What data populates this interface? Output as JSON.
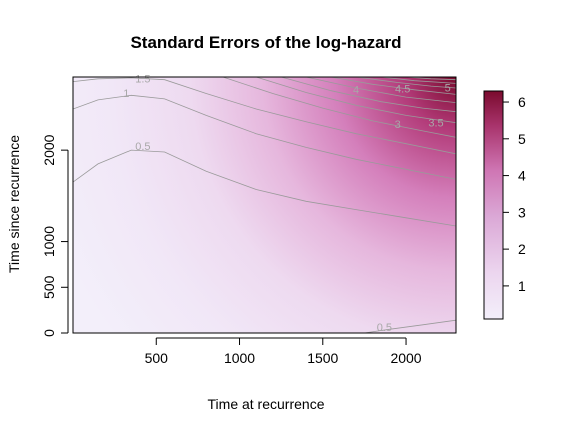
{
  "chart_data": {
    "type": "heatmap",
    "title": "Standard Errors of the log-hazard",
    "xlabel": "Time at recurrence",
    "ylabel": "Time since recurrence",
    "xlim": [
      0,
      2300
    ],
    "ylim": [
      0,
      2800
    ],
    "x_ticks": [
      500,
      1000,
      1500,
      2000
    ],
    "x_tick_labels": [
      "500",
      "1000",
      "1500",
      "2000"
    ],
    "y_ticks": [
      0,
      500,
      1000,
      2000
    ],
    "y_tick_labels": [
      "0",
      "500",
      "1000",
      "2000"
    ],
    "colorbar": {
      "range": [
        0.1,
        6.3
      ],
      "ticks": [
        1,
        2,
        3,
        4,
        5,
        6
      ],
      "tick_labels": [
        "1",
        "2",
        "3",
        "4",
        "5",
        "6"
      ],
      "low_color": "#f3effa",
      "mid_color": "#d99ccc",
      "high_color": "#7a0b2e"
    },
    "contour_levels": [
      {
        "level": 0.5,
        "label": "0.5",
        "points": [
          [
            0,
            1650
          ],
          [
            150,
            1850
          ],
          [
            350,
            2000
          ],
          [
            550,
            1980
          ],
          [
            800,
            1770
          ],
          [
            1100,
            1570
          ],
          [
            1400,
            1440
          ],
          [
            1700,
            1350
          ],
          [
            2000,
            1260
          ],
          [
            2300,
            1170
          ]
        ]
      },
      {
        "level": 1,
        "label": "1",
        "points": [
          [
            0,
            2450
          ],
          [
            150,
            2550
          ],
          [
            350,
            2600
          ],
          [
            550,
            2560
          ],
          [
            800,
            2380
          ],
          [
            1100,
            2180
          ],
          [
            1400,
            2030
          ],
          [
            1700,
            1900
          ],
          [
            2000,
            1790
          ],
          [
            2300,
            1680
          ]
        ]
      },
      {
        "level": 1.5,
        "label": "1.5",
        "points": [
          [
            0,
            2750
          ],
          [
            150,
            2780
          ],
          [
            350,
            2790
          ],
          [
            550,
            2770
          ],
          [
            800,
            2620
          ],
          [
            1100,
            2450
          ],
          [
            1400,
            2310
          ],
          [
            1700,
            2180
          ],
          [
            2000,
            2070
          ],
          [
            2300,
            1960
          ]
        ]
      },
      {
        "level": 2,
        "label": "2",
        "points": [
          [
            900,
            2800
          ],
          [
            1200,
            2620
          ],
          [
            1500,
            2460
          ],
          [
            1800,
            2320
          ],
          [
            2100,
            2210
          ],
          [
            2300,
            2140
          ]
        ]
      },
      {
        "level": 2.5,
        "label": "2.5",
        "points": [
          [
            1100,
            2800
          ],
          [
            1400,
            2630
          ],
          [
            1700,
            2490
          ],
          [
            2000,
            2380
          ],
          [
            2300,
            2300
          ]
        ]
      },
      {
        "level": 3,
        "label": "3",
        "points": [
          [
            1250,
            2800
          ],
          [
            1550,
            2650
          ],
          [
            1850,
            2530
          ],
          [
            2100,
            2460
          ],
          [
            2300,
            2420
          ]
        ]
      },
      {
        "level": 3.5,
        "label": "3.5",
        "points": [
          [
            1400,
            2800
          ],
          [
            1700,
            2680
          ],
          [
            2000,
            2580
          ],
          [
            2300,
            2520
          ]
        ]
      },
      {
        "level": 4,
        "label": "4",
        "points": [
          [
            1550,
            2800
          ],
          [
            1800,
            2720
          ],
          [
            2050,
            2660
          ],
          [
            2300,
            2610
          ]
        ]
      },
      {
        "level": 4.5,
        "label": "4.5",
        "points": [
          [
            1700,
            2800
          ],
          [
            1950,
            2740
          ],
          [
            2150,
            2700
          ],
          [
            2300,
            2680
          ]
        ]
      },
      {
        "level": 5,
        "label": "5",
        "points": [
          [
            1850,
            2800
          ],
          [
            2050,
            2760
          ],
          [
            2300,
            2730
          ]
        ]
      },
      {
        "level": 5.5,
        "label": "",
        "points": [
          [
            2000,
            2800
          ],
          [
            2150,
            2780
          ],
          [
            2300,
            2770
          ]
        ]
      },
      {
        "level": 0.5,
        "label": "0.5",
        "points": [
          [
            1750,
            0
          ],
          [
            1900,
            40
          ],
          [
            2100,
            90
          ],
          [
            2300,
            140
          ]
        ]
      }
    ],
    "contour_label_spots": [
      {
        "text": "1.5",
        "x": 420,
        "y": 2740
      },
      {
        "text": "1",
        "x": 320,
        "y": 2580
      },
      {
        "text": "0.5",
        "x": 420,
        "y": 2000
      },
      {
        "text": "4",
        "x": 1700,
        "y": 2620
      },
      {
        "text": "4.5",
        "x": 1980,
        "y": 2630
      },
      {
        "text": "5",
        "x": 2250,
        "y": 2640
      },
      {
        "text": "3.5",
        "x": 2180,
        "y": 2260
      },
      {
        "text": "3",
        "x": 1950,
        "y": 2240
      },
      {
        "text": "0.5",
        "x": 1870,
        "y": 20
      }
    ]
  }
}
